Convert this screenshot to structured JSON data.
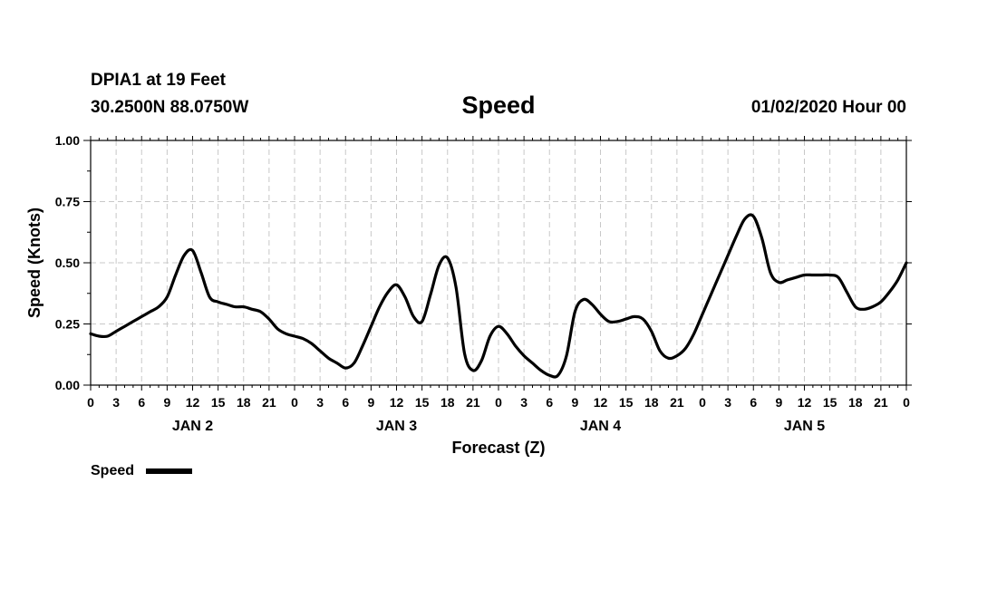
{
  "header": {
    "station": "DPIA1 at 19 Feet",
    "coords": "30.2500N 88.0750W",
    "title": "Speed",
    "run": "01/02/2020 Hour 00"
  },
  "chart_data": {
    "type": "line",
    "title": "Speed",
    "xlabel": "Forecast (Z)",
    "ylabel": "Speed (Knots)",
    "ylim": [
      0,
      1
    ],
    "xlim_hours": [
      0,
      96
    ],
    "grid": true,
    "legend_position": "bottom-left",
    "y_ticks": [
      "0.00",
      "0.25",
      "0.50",
      "0.75",
      "1.00"
    ],
    "x_ticks": [
      "0",
      "3",
      "6",
      "9",
      "12",
      "15",
      "18",
      "21",
      "0",
      "3",
      "6",
      "9",
      "12",
      "15",
      "18",
      "21",
      "0",
      "3",
      "6",
      "9",
      "12",
      "15",
      "18",
      "21",
      "0",
      "3",
      "6",
      "9",
      "12",
      "15",
      "18",
      "21",
      "0"
    ],
    "day_labels": [
      {
        "label": "JAN 2",
        "hour": 12
      },
      {
        "label": "JAN 3",
        "hour": 36
      },
      {
        "label": "JAN 4",
        "hour": 60
      },
      {
        "label": "JAN 5",
        "hour": 84
      }
    ],
    "series": [
      {
        "name": "Speed",
        "color": "#000000",
        "x": [
          0,
          1,
          2,
          3,
          4,
          5,
          6,
          7,
          8,
          9,
          10,
          11,
          12,
          13,
          14,
          15,
          16,
          17,
          18,
          19,
          20,
          21,
          22,
          23,
          24,
          25,
          26,
          27,
          28,
          29,
          30,
          31,
          32,
          33,
          34,
          35,
          36,
          37,
          38,
          39,
          40,
          41,
          42,
          43,
          44,
          45,
          46,
          47,
          48,
          49,
          50,
          51,
          52,
          53,
          54,
          55,
          56,
          57,
          58,
          59,
          60,
          61,
          62,
          63,
          64,
          65,
          66,
          67,
          68,
          69,
          70,
          71,
          72,
          73,
          74,
          75,
          76,
          77,
          78,
          79,
          80,
          81,
          82,
          83,
          84,
          85,
          86,
          87,
          88,
          89,
          90,
          91,
          92,
          93,
          94,
          95,
          96
        ],
        "y": [
          0.21,
          0.2,
          0.2,
          0.22,
          0.24,
          0.26,
          0.28,
          0.3,
          0.32,
          0.36,
          0.45,
          0.53,
          0.55,
          0.46,
          0.36,
          0.34,
          0.33,
          0.32,
          0.32,
          0.31,
          0.3,
          0.27,
          0.23,
          0.21,
          0.2,
          0.19,
          0.17,
          0.14,
          0.11,
          0.09,
          0.07,
          0.09,
          0.16,
          0.24,
          0.32,
          0.38,
          0.41,
          0.36,
          0.28,
          0.26,
          0.37,
          0.49,
          0.52,
          0.4,
          0.13,
          0.06,
          0.1,
          0.2,
          0.24,
          0.21,
          0.16,
          0.12,
          0.09,
          0.06,
          0.04,
          0.04,
          0.12,
          0.3,
          0.35,
          0.33,
          0.29,
          0.26,
          0.26,
          0.27,
          0.28,
          0.27,
          0.22,
          0.14,
          0.11,
          0.12,
          0.15,
          0.21,
          0.29,
          0.37,
          0.45,
          0.53,
          0.61,
          0.68,
          0.69,
          0.6,
          0.46,
          0.42,
          0.43,
          0.44,
          0.45,
          0.45,
          0.45,
          0.45,
          0.44,
          0.38,
          0.32,
          0.31,
          0.32,
          0.34,
          0.38,
          0.43,
          0.5
        ]
      }
    ]
  },
  "legend": {
    "label": "Speed"
  }
}
